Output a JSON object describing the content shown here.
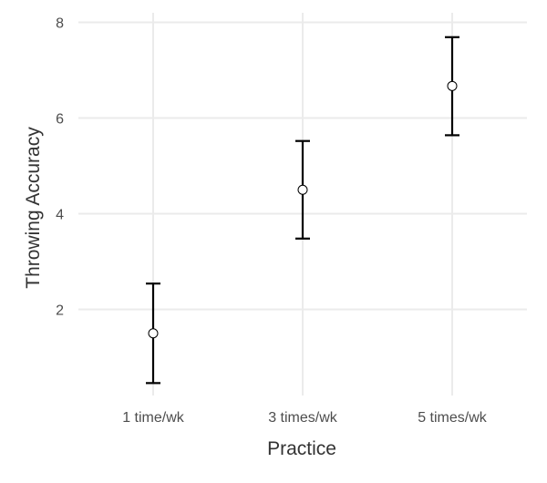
{
  "chart_data": {
    "type": "scatter",
    "title": "",
    "xlabel": "Practice",
    "ylabel": "Throwing Accuracy",
    "categories": [
      "1 time/wk",
      "3 times/wk",
      "5 times/wk"
    ],
    "series": [
      {
        "values": [
          1.5,
          4.5,
          6.67
        ],
        "lower": [
          0.46,
          3.48,
          5.64
        ],
        "upper": [
          2.54,
          5.52,
          7.69
        ]
      }
    ],
    "ylim": [
      0.2,
      8.2
    ],
    "yticks": [
      2,
      4,
      6,
      8
    ],
    "grid": true,
    "legend": "none",
    "point_color": "#ffffff",
    "error_bar_color": "#000000",
    "grid_color": "#ebebeb"
  }
}
